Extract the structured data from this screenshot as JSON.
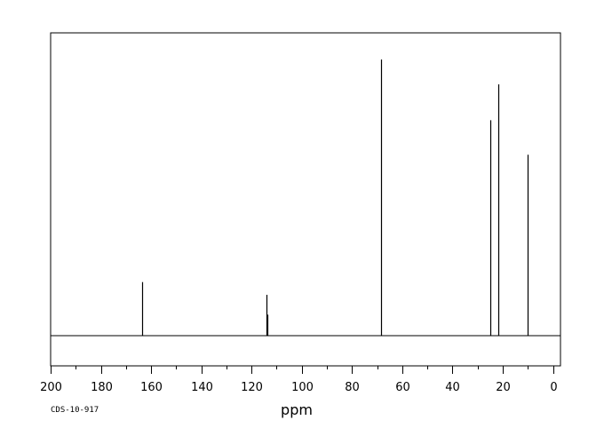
{
  "chart_data": {
    "type": "line",
    "xlabel": "ppm",
    "xlim": [
      200,
      -3
    ],
    "ylim": [
      0,
      100
    ],
    "x_ticks_major": [
      200,
      180,
      160,
      140,
      120,
      100,
      80,
      60,
      40,
      20,
      0
    ],
    "x_ticks_minor_step": 10,
    "grid": false,
    "peaks": [
      {
        "ppm": 163.4,
        "intensity": 19.4
      },
      {
        "ppm": 113.9,
        "intensity": 14.8
      },
      {
        "ppm": 113.6,
        "intensity": 7.6
      },
      {
        "ppm": 68.6,
        "intensity": 100.0
      },
      {
        "ppm": 24.8,
        "intensity": 78.0
      },
      {
        "ppm": 21.9,
        "intensity": 91.0
      },
      {
        "ppm": 10.2,
        "intensity": 65.5
      }
    ],
    "baseline_color": "#000000",
    "line_color": "#000000"
  },
  "catalog_id": "CDS-10-917"
}
